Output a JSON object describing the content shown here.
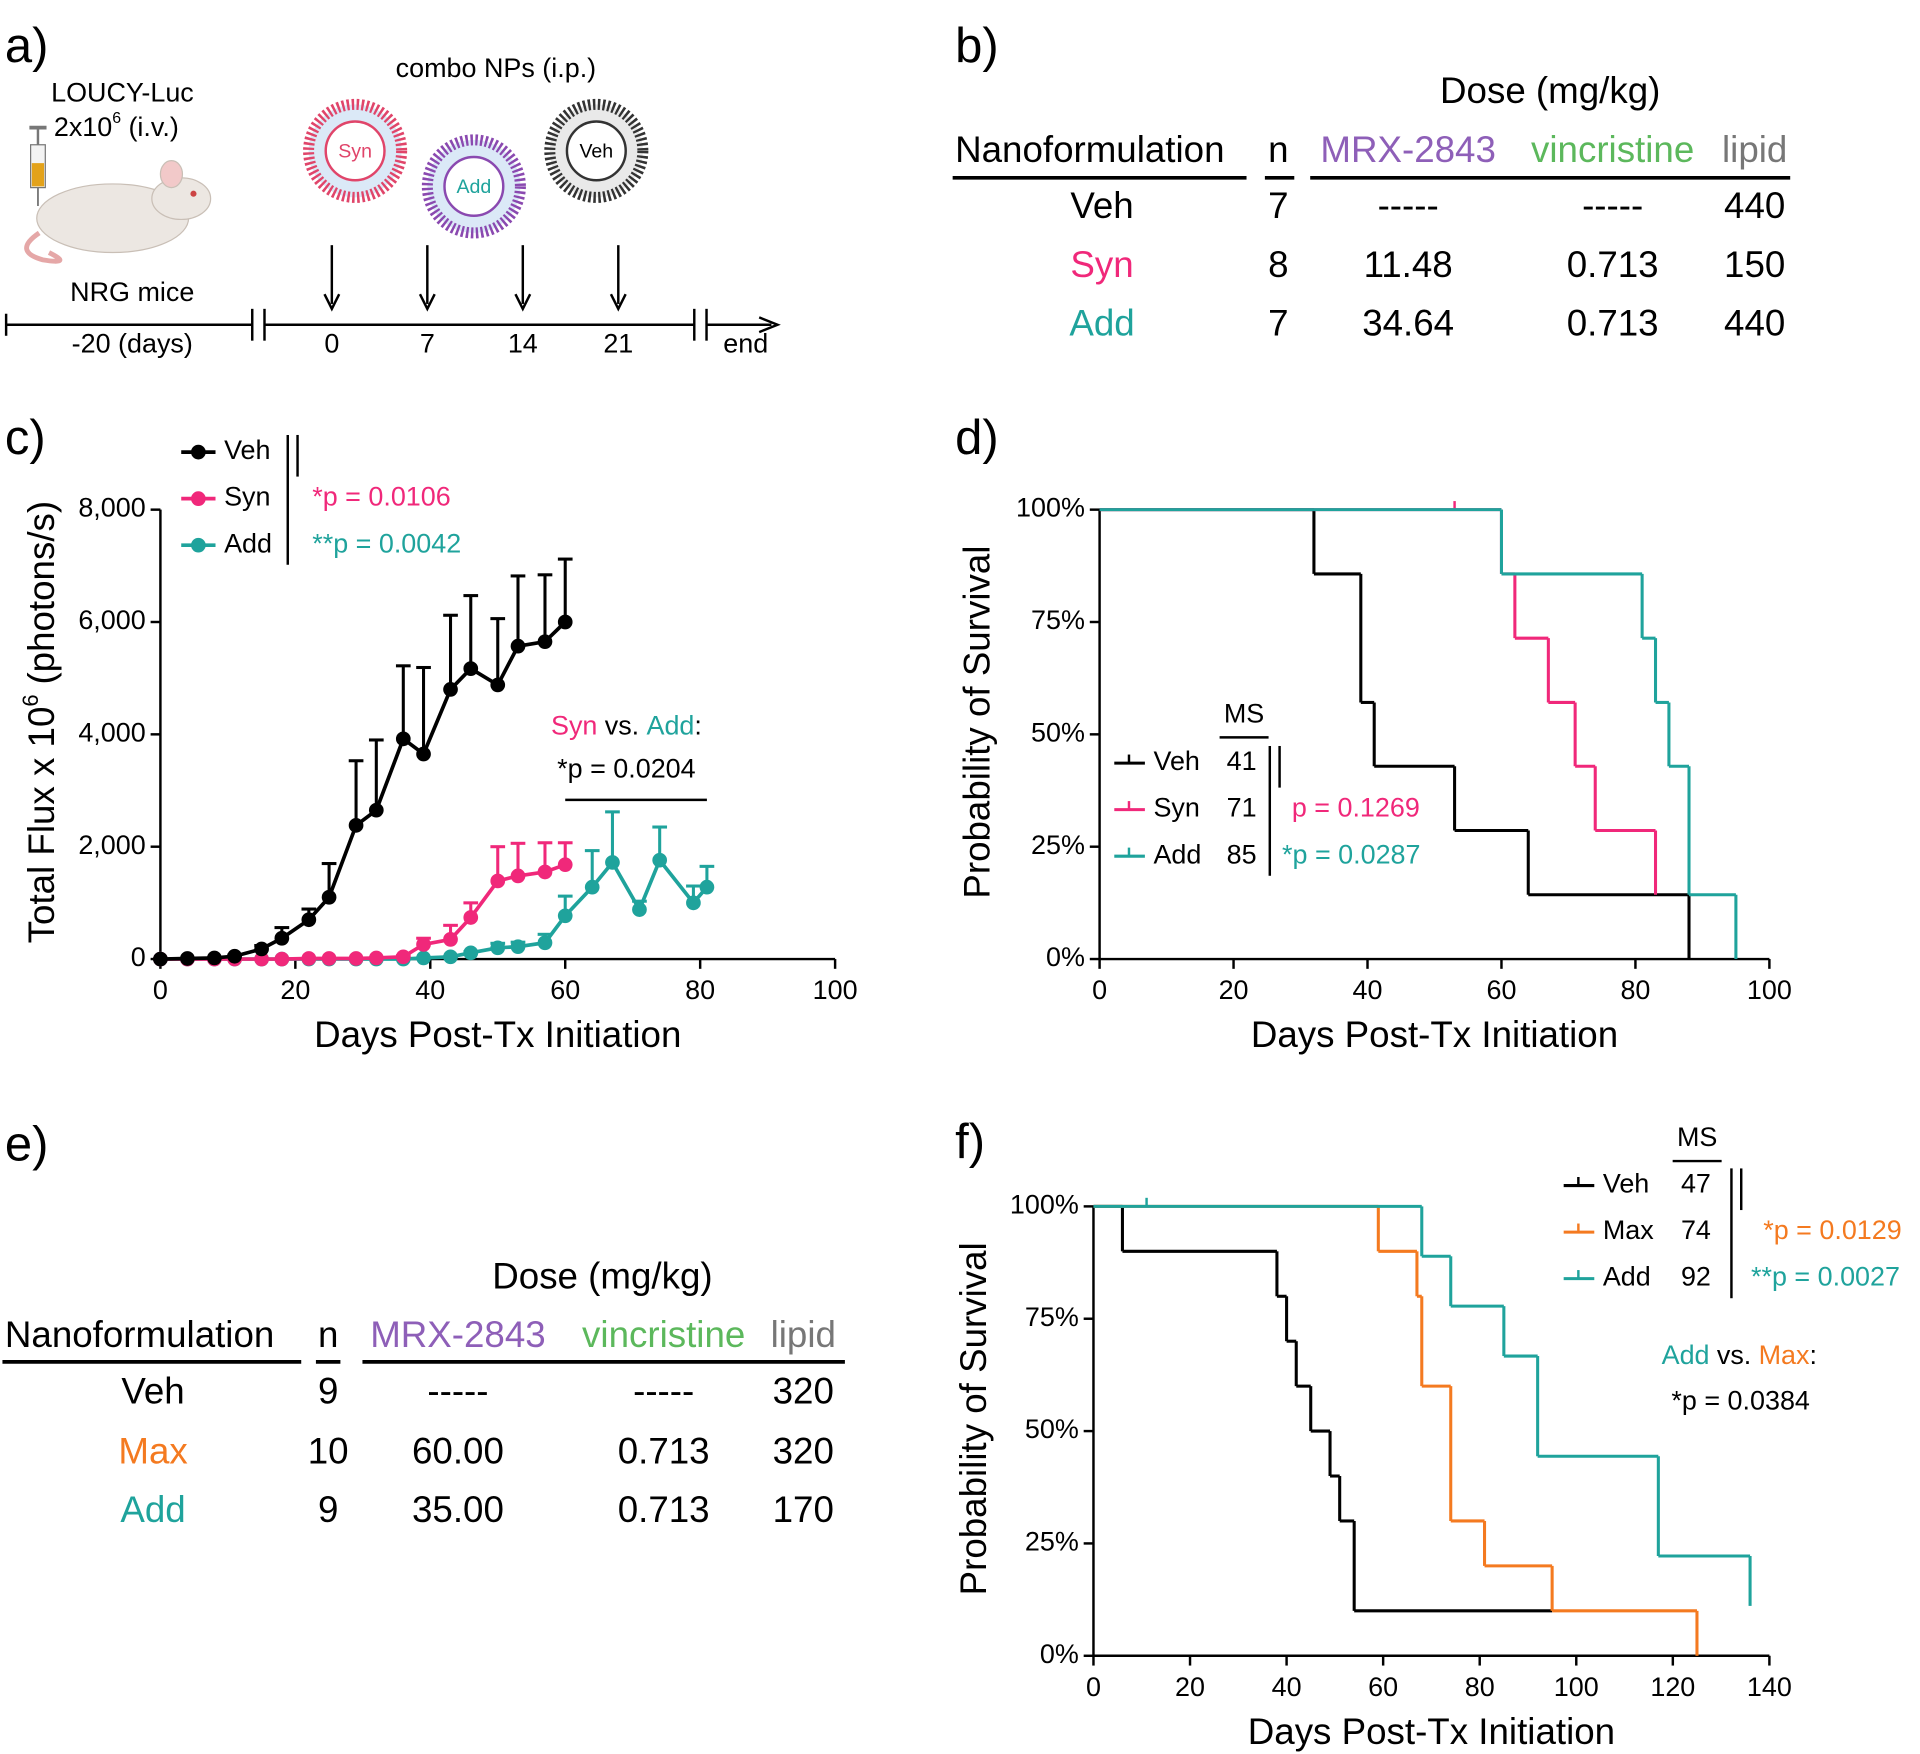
{
  "panel_a": {
    "label": "a)",
    "cell_line": "LOUCY-Luc",
    "cell_dose": "2x10",
    "cell_dose_exp": "6",
    "cell_route": "(i.v.)",
    "treatment": "combo NPs (i.p.)",
    "nanoparticles": [
      "Syn",
      "Add",
      "Veh"
    ],
    "mice": "NRG mice",
    "start": "-20 (days)",
    "doses": [
      0,
      7,
      14,
      21
    ],
    "end": "end"
  },
  "table_b": {
    "label": "b)",
    "dose_header": "Dose (mg/kg)",
    "columns": [
      "Nanoformulation",
      "n",
      "MRX-2843",
      "vincristine",
      "lipid"
    ],
    "column_colors": [
      "#000000",
      "#000000",
      "#8e5fb8",
      "#5cb85c",
      "#777777"
    ],
    "rows": [
      [
        "Veh",
        7,
        "-----",
        "-----",
        440
      ],
      [
        "Syn",
        8,
        11.48,
        0.713,
        150
      ],
      [
        "Add",
        7,
        34.64,
        0.713,
        440
      ]
    ],
    "row_colors": [
      "#000000",
      "#f0287a",
      "#1fa39c"
    ]
  },
  "table_e": {
    "label": "e)",
    "dose_header": "Dose (mg/kg)",
    "columns": [
      "Nanoformulation",
      "n",
      "MRX-2843",
      "vincristine",
      "lipid"
    ],
    "column_colors": [
      "#000000",
      "#000000",
      "#8e5fb8",
      "#5cb85c",
      "#777777"
    ],
    "rows": [
      [
        "Veh",
        9,
        "-----",
        "-----",
        320
      ],
      [
        "Max",
        10,
        "60.00",
        0.713,
        320
      ],
      [
        "Add",
        9,
        "35.00",
        0.713,
        170
      ]
    ],
    "row_colors": [
      "#000000",
      "#f47a20",
      "#1fa39c"
    ]
  },
  "chart_data": [
    {
      "panel_label": "c)",
      "type": "line",
      "xlabel": "Days Post-Tx Initiation",
      "ylabel": "Total Flux x 10",
      "ylabel_exp": "6",
      "ylabel_unit": "(photons/s)",
      "xlim": [
        0,
        100
      ],
      "xticks": [
        0,
        20,
        40,
        60,
        80,
        100
      ],
      "ylim": [
        0,
        8000
      ],
      "yticks": [
        0,
        {
          "value": 2000,
          "label": "2,000"
        },
        {
          "value": 4000,
          "label": "4,000"
        },
        {
          "value": 6000,
          "label": "6,000"
        },
        {
          "value": 8000,
          "label": "8,000"
        }
      ],
      "series": [
        {
          "name": "Veh",
          "color": "#000000",
          "x": [
            0,
            4,
            8,
            11,
            15,
            18,
            22,
            25,
            29,
            32,
            36,
            39,
            43,
            46,
            50,
            53,
            57,
            60
          ],
          "values": [
            0,
            10,
            20,
            50,
            180,
            370,
            700,
            1100,
            2380,
            2650,
            3920,
            3650,
            4800,
            5170,
            4880,
            5570,
            5650,
            6000
          ],
          "errors": [
            0,
            0,
            0,
            20,
            60,
            190,
            190,
            600,
            1150,
            1250,
            1300,
            1540,
            1320,
            1300,
            1180,
            1250,
            1190,
            1120
          ]
        },
        {
          "name": "Syn",
          "color": "#f0287a",
          "x": [
            0,
            4,
            8,
            11,
            15,
            18,
            22,
            25,
            29,
            32,
            36,
            39,
            43,
            46,
            50,
            53,
            57,
            60
          ],
          "values": [
            0,
            0,
            0,
            0,
            0,
            0,
            10,
            10,
            10,
            20,
            40,
            260,
            350,
            740,
            1390,
            1480,
            1550,
            1680
          ],
          "errors": [
            0,
            0,
            0,
            0,
            0,
            0,
            0,
            0,
            0,
            0,
            20,
            110,
            250,
            260,
            610,
            580,
            520,
            390
          ]
        },
        {
          "name": "Add",
          "color": "#1fa39c",
          "x": [
            0,
            4,
            8,
            11,
            15,
            18,
            22,
            25,
            29,
            32,
            36,
            39,
            43,
            46,
            50,
            53,
            57,
            60,
            64,
            67,
            71,
            74,
            79,
            81
          ],
          "values": [
            0,
            0,
            0,
            0,
            0,
            0,
            0,
            0,
            0,
            0,
            0,
            20,
            40,
            110,
            200,
            220,
            290,
            770,
            1280,
            1720,
            880,
            1760,
            1000,
            1280
          ],
          "errors": [
            0,
            0,
            0,
            0,
            0,
            0,
            0,
            0,
            0,
            0,
            0,
            0,
            0,
            20,
            80,
            80,
            150,
            350,
            650,
            900,
            150,
            590,
            300,
            370
          ]
        }
      ],
      "pvalues": [
        "*p = 0.0106",
        "**p = 0.0042"
      ],
      "pvalue_colors": [
        "#f0287a",
        "#1fa39c"
      ],
      "comparison": [
        "Syn",
        "vs.",
        "Add",
        ":"
      ],
      "comparison_colors": [
        "#f0287a",
        "#000000",
        "#1fa39c",
        "#000000"
      ],
      "comparison_pvalue": "*p = 0.0204",
      "comparison_range": [
        60,
        81
      ]
    },
    {
      "panel_label": "d)",
      "type": "survival",
      "xlabel": "Days Post-Tx Initiation",
      "ylabel": "Probability of Survival",
      "xlim": [
        0,
        100
      ],
      "xticks": [
        0,
        20,
        40,
        60,
        80,
        100
      ],
      "ylim": [
        0,
        100
      ],
      "yticks": [
        {
          "value": 0,
          "label": "0%"
        },
        {
          "value": 25,
          "label": "25%"
        },
        {
          "value": 50,
          "label": "50%"
        },
        {
          "value": 75,
          "label": "75%"
        },
        {
          "value": 100,
          "label": "100%"
        }
      ],
      "legend_title": "MS",
      "series": [
        {
          "name": "Veh",
          "color": "#000000",
          "ms": 41,
          "x": [
            0,
            32,
            39,
            41,
            53,
            64,
            88
          ],
          "values": [
            100,
            85.7,
            57.1,
            42.9,
            28.6,
            14.3,
            0
          ]
        },
        {
          "name": "Syn",
          "color": "#f0287a",
          "ms": 71,
          "x": [
            0,
            60,
            62,
            67,
            71,
            74,
            83
          ],
          "values": [
            100,
            85.7,
            71.4,
            57.1,
            42.9,
            28.6,
            14.3
          ],
          "censored_x": [
            53
          ],
          "censored_values": [
            100
          ]
        },
        {
          "name": "Add",
          "color": "#1fa39c",
          "ms": 85,
          "x": [
            0,
            60,
            81,
            83,
            85,
            88,
            95
          ],
          "values": [
            100,
            85.7,
            71.4,
            57.1,
            42.9,
            14.3,
            0
          ]
        }
      ],
      "pvalues": [
        "p = 0.1269",
        "*p = 0.0287"
      ],
      "pvalue_colors": [
        "#f0287a",
        "#1fa39c"
      ]
    },
    {
      "panel_label": "f)",
      "type": "survival",
      "xlabel": "Days Post-Tx Initiation",
      "ylabel": "Probability of Survival",
      "xlim": [
        0,
        140
      ],
      "xticks": [
        0,
        20,
        40,
        60,
        80,
        100,
        120,
        140
      ],
      "ylim": [
        0,
        100
      ],
      "yticks": [
        {
          "value": 0,
          "label": "0%"
        },
        {
          "value": 25,
          "label": "25%"
        },
        {
          "value": 50,
          "label": "50%"
        },
        {
          "value": 75,
          "label": "75%"
        },
        {
          "value": 100,
          "label": "100%"
        }
      ],
      "legend_title": "MS",
      "series": [
        {
          "name": "Veh",
          "color": "#000000",
          "ms": 47,
          "x": [
            0,
            6,
            38,
            40,
            42,
            45,
            49,
            51,
            54,
            95
          ],
          "values": [
            100,
            90,
            80,
            70,
            60,
            50,
            40,
            30,
            10,
            10
          ]
        },
        {
          "name": "Max",
          "color": "#f47a20",
          "ms": 74,
          "x": [
            0,
            59,
            67,
            68,
            74,
            81,
            95,
            125
          ],
          "values": [
            100,
            90,
            80,
            60,
            30,
            20,
            10,
            0
          ]
        },
        {
          "name": "Add",
          "color": "#1fa39c",
          "ms": 92,
          "x": [
            0,
            68,
            74,
            85,
            92,
            117,
            136
          ],
          "values": [
            100,
            88.9,
            77.8,
            66.7,
            44.4,
            22.2,
            11.1
          ],
          "censored_x": [
            11
          ],
          "censored_values": [
            100
          ]
        }
      ],
      "pvalues": [
        "*p = 0.0129",
        "**p = 0.0027"
      ],
      "pvalue_colors": [
        "#f47a20",
        "#1fa39c"
      ],
      "comparison": [
        "Add",
        "vs.",
        "Max",
        ":"
      ],
      "comparison_colors": [
        "#1fa39c",
        "#000000",
        "#f47a20",
        "#000000"
      ],
      "comparison_pvalue": "*p = 0.0384"
    }
  ]
}
